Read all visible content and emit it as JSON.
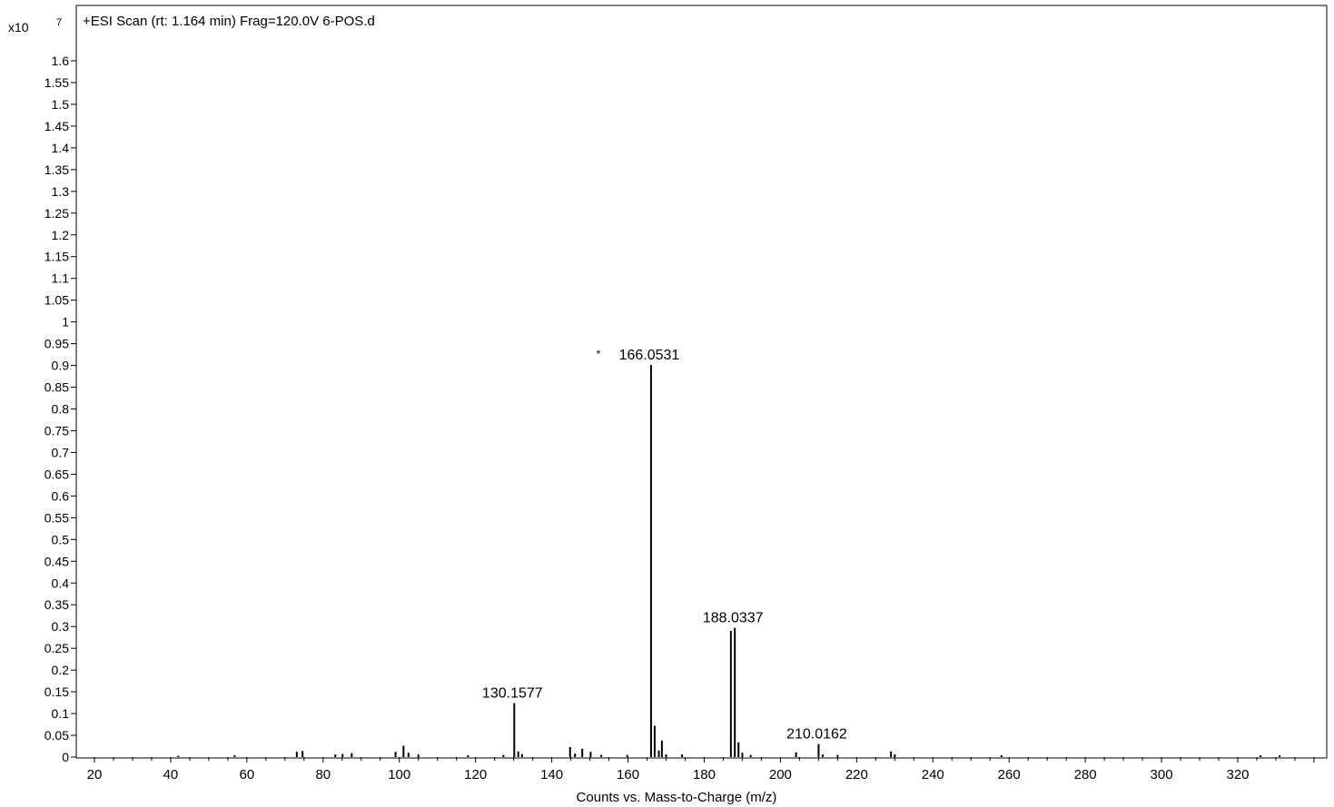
{
  "chart_data": {
    "type": "bar",
    "title": "+ESI Scan (rt: 1.164 min) Frag=120.0V 6-POS.d",
    "multiplier": "x10",
    "exponent": "7",
    "xlabel": "Counts vs. Mass-to-Charge (m/z)",
    "ylabel": "",
    "xlim": [
      16,
      342
    ],
    "ylim": [
      0,
      1.7
    ],
    "grid": false,
    "x_ticks": [
      20,
      40,
      60,
      80,
      100,
      120,
      140,
      160,
      180,
      200,
      220,
      240,
      260,
      280,
      300,
      320
    ],
    "y_ticks": [
      0,
      0.05,
      0.1,
      0.15,
      0.2,
      0.25,
      0.3,
      0.35,
      0.4,
      0.45,
      0.5,
      0.55,
      0.6,
      0.65,
      0.7,
      0.75,
      0.8,
      0.85,
      0.9,
      0.95,
      1,
      1.05,
      1.1,
      1.15,
      1.2,
      1.25,
      1.3,
      1.35,
      1.4,
      1.45,
      1.5,
      1.55,
      1.6
    ],
    "y_tick_labels": [
      "0",
      "0.05",
      "0.1",
      "0.15",
      "0.2",
      "0.25",
      "0.3",
      "0.35",
      "0.4",
      "0.45",
      "0.5",
      "0.55",
      "0.6",
      "0.65",
      "0.7",
      "0.75",
      "0.8",
      "0.85",
      "0.9",
      "0.95",
      "1",
      "1.05",
      "1.1",
      "1.15",
      "1.2",
      "1.25",
      "1.3",
      "1.35",
      "1.4",
      "1.45",
      "1.5",
      "1.55",
      "1.6"
    ],
    "peaks": [
      {
        "mz": 42.0,
        "intensity": 0.003
      },
      {
        "mz": 56.8,
        "intensity": 0.004
      },
      {
        "mz": 73.1,
        "intensity": 0.012
      },
      {
        "mz": 74.6,
        "intensity": 0.014
      },
      {
        "mz": 83.2,
        "intensity": 0.006
      },
      {
        "mz": 85.1,
        "intensity": 0.007
      },
      {
        "mz": 87.5,
        "intensity": 0.009
      },
      {
        "mz": 99.0,
        "intensity": 0.012
      },
      {
        "mz": 101.1,
        "intensity": 0.026
      },
      {
        "mz": 102.4,
        "intensity": 0.01
      },
      {
        "mz": 105.0,
        "intensity": 0.006
      },
      {
        "mz": 118.0,
        "intensity": 0.004
      },
      {
        "mz": 127.3,
        "intensity": 0.005
      },
      {
        "mz": 130.1577,
        "intensity": 0.124
      },
      {
        "mz": 131.2,
        "intensity": 0.013
      },
      {
        "mz": 132.2,
        "intensity": 0.007
      },
      {
        "mz": 144.8,
        "intensity": 0.023
      },
      {
        "mz": 146.1,
        "intensity": 0.008
      },
      {
        "mz": 148.0,
        "intensity": 0.019
      },
      {
        "mz": 150.2,
        "intensity": 0.012
      },
      {
        "mz": 153.0,
        "intensity": 0.005
      },
      {
        "mz": 159.8,
        "intensity": 0.005
      },
      {
        "mz": 166.0531,
        "intensity": 0.901
      },
      {
        "mz": 167.0,
        "intensity": 0.072
      },
      {
        "mz": 168.1,
        "intensity": 0.015
      },
      {
        "mz": 168.9,
        "intensity": 0.038
      },
      {
        "mz": 170.0,
        "intensity": 0.006
      },
      {
        "mz": 174.2,
        "intensity": 0.006
      },
      {
        "mz": 187.0,
        "intensity": 0.29
      },
      {
        "mz": 188.0337,
        "intensity": 0.297
      },
      {
        "mz": 189.0,
        "intensity": 0.034
      },
      {
        "mz": 190.0,
        "intensity": 0.01
      },
      {
        "mz": 192.2,
        "intensity": 0.005
      },
      {
        "mz": 204.1,
        "intensity": 0.011
      },
      {
        "mz": 210.0162,
        "intensity": 0.03
      },
      {
        "mz": 211.1,
        "intensity": 0.006
      },
      {
        "mz": 215.0,
        "intensity": 0.005
      },
      {
        "mz": 229.0,
        "intensity": 0.013
      },
      {
        "mz": 230.0,
        "intensity": 0.006
      },
      {
        "mz": 258.0,
        "intensity": 0.004
      },
      {
        "mz": 326.0,
        "intensity": 0.004
      },
      {
        "mz": 331.0,
        "intensity": 0.004
      }
    ],
    "annotations": [
      {
        "mz": 130.1577,
        "text": "130.1577"
      },
      {
        "mz": 166.0531,
        "text": "166.0531",
        "marker": "*"
      },
      {
        "mz": 188.0337,
        "text": "188.0337"
      },
      {
        "mz": 210.0162,
        "text": "210.0162"
      }
    ]
  }
}
